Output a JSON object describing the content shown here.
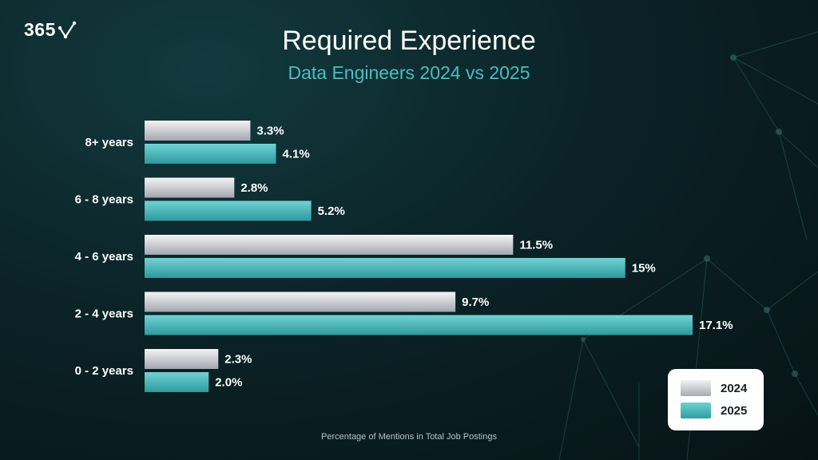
{
  "brand": {
    "logo_text": "365"
  },
  "chart_data": {
    "type": "bar",
    "orientation": "horizontal",
    "title": "Required Experience",
    "subtitle": "Data Engineers 2024 vs 2025",
    "xlabel": "Percentage of Mentions in Total Job Postings",
    "ylabel": "",
    "categories": [
      "8+ years",
      "6 - 8 years",
      "4 - 6 years",
      "2 - 4 years",
      "0 - 2 years"
    ],
    "series": [
      {
        "name": "2024",
        "values": [
          3.3,
          2.8,
          11.5,
          9.7,
          2.3
        ],
        "labels": [
          "3.3%",
          "2.8%",
          "11.5%",
          "9.7%",
          "2.3%"
        ],
        "color": "#c9cbd0"
      },
      {
        "name": "2025",
        "values": [
          4.1,
          5.2,
          15,
          17.1,
          2.0
        ],
        "labels": [
          "4.1%",
          "5.2%",
          "15%",
          "17.1%",
          "2.0%"
        ],
        "color": "#4fb5b8"
      }
    ],
    "xlim": [
      0,
      17.1
    ],
    "grid": false,
    "legend": {
      "position": "bottom-right",
      "entries": [
        "2024",
        "2025"
      ]
    }
  }
}
